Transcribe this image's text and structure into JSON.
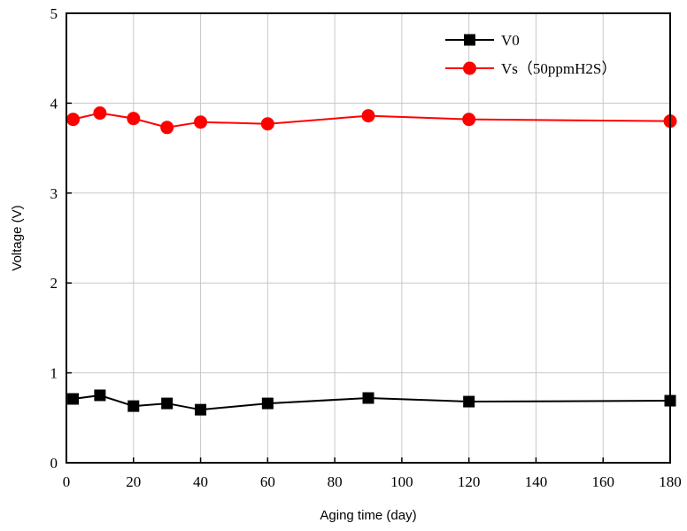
{
  "chart_data": {
    "type": "line",
    "title": "",
    "xlabel": "Aging time (day)",
    "ylabel": "Voltage (V)",
    "xlim": [
      0,
      180
    ],
    "ylim": [
      0,
      5
    ],
    "xticks": [
      "0",
      "20",
      "40",
      "60",
      "80",
      "100",
      "120",
      "140",
      "160",
      "180"
    ],
    "yticks": [
      "0",
      "1",
      "2",
      "3",
      "4",
      "5"
    ],
    "grid": true,
    "legend_position": "top-right",
    "series": [
      {
        "name": "V0",
        "color": "#000000",
        "marker": "square",
        "x": [
          2,
          10,
          20,
          30,
          40,
          60,
          90,
          120,
          180
        ],
        "y": [
          0.71,
          0.75,
          0.63,
          0.66,
          0.59,
          0.66,
          0.72,
          0.68,
          0.69
        ]
      },
      {
        "name": "Vs（50ppmH2S）",
        "color": "#ff0000",
        "marker": "circle",
        "x": [
          2,
          10,
          20,
          30,
          40,
          60,
          90,
          120,
          180
        ],
        "y": [
          3.82,
          3.89,
          3.83,
          3.73,
          3.79,
          3.77,
          3.86,
          3.82,
          3.8
        ]
      }
    ]
  }
}
